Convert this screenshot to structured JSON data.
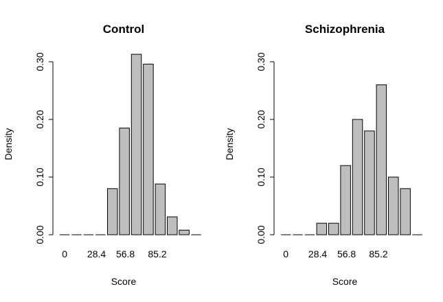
{
  "chart_data": [
    {
      "type": "bar",
      "title": "Control",
      "xlabel": "Score",
      "ylabel": "Density",
      "ylim": [
        0,
        0.3
      ],
      "yticks": [
        "0.00",
        "0.10",
        "0.20",
        "0.30"
      ],
      "xtick_labels": [
        "0",
        "28.4",
        "56.8",
        "85.2"
      ],
      "values": [
        0,
        0,
        0,
        0,
        0.08,
        0.185,
        0.313,
        0.296,
        0.088,
        0.031,
        0.008,
        0
      ]
    },
    {
      "type": "bar",
      "title": "Schizophrenia",
      "xlabel": "Score",
      "ylabel": "Density",
      "ylim": [
        0,
        0.3
      ],
      "yticks": [
        "0.00",
        "0.10",
        "0.20",
        "0.30"
      ],
      "xtick_labels": [
        "0",
        "28.4",
        "56.8",
        "85.2"
      ],
      "values": [
        0,
        0,
        0,
        0.02,
        0.02,
        0.12,
        0.2,
        0.18,
        0.26,
        0.1,
        0.08,
        0
      ]
    }
  ]
}
